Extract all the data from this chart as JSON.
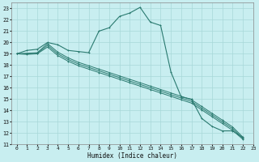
{
  "title": "",
  "xlabel": "Humidex (Indice chaleur)",
  "background_color": "#c8eef0",
  "grid_color": "#a8d8d8",
  "line_color": "#2a7a70",
  "xlim": [
    -0.5,
    23
  ],
  "ylim": [
    11,
    23.5
  ],
  "x_ticks": [
    0,
    1,
    2,
    3,
    4,
    5,
    6,
    7,
    8,
    9,
    10,
    11,
    12,
    13,
    14,
    15,
    16,
    17,
    18,
    19,
    20,
    21,
    22,
    23
  ],
  "y_ticks": [
    11,
    12,
    13,
    14,
    15,
    16,
    17,
    18,
    19,
    20,
    21,
    22,
    23
  ],
  "series": [
    [
      19.0,
      19.3,
      19.4,
      20.0,
      19.8,
      19.3,
      19.2,
      19.1,
      21.0,
      21.3,
      22.3,
      22.6,
      23.1,
      21.8,
      21.5,
      17.4,
      15.2,
      15.0,
      13.3,
      12.6,
      12.2,
      12.2,
      11.6
    ],
    [
      19.0,
      19.05,
      19.1,
      19.9,
      19.15,
      18.65,
      18.25,
      17.95,
      17.65,
      17.35,
      17.05,
      16.75,
      16.45,
      16.15,
      15.85,
      15.55,
      15.25,
      14.95,
      14.35,
      13.75,
      13.15,
      12.55,
      11.65
    ],
    [
      19.0,
      19.0,
      19.05,
      19.75,
      19.0,
      18.5,
      18.1,
      17.8,
      17.5,
      17.2,
      16.9,
      16.6,
      16.3,
      16.0,
      15.7,
      15.4,
      15.1,
      14.8,
      14.2,
      13.6,
      13.0,
      12.4,
      11.55
    ],
    [
      19.0,
      18.95,
      19.0,
      19.6,
      18.85,
      18.35,
      17.95,
      17.65,
      17.35,
      17.05,
      16.75,
      16.45,
      16.15,
      15.85,
      15.55,
      15.25,
      14.95,
      14.65,
      14.05,
      13.45,
      12.85,
      12.25,
      11.45
    ]
  ],
  "markers": [
    true,
    true,
    true,
    true
  ]
}
